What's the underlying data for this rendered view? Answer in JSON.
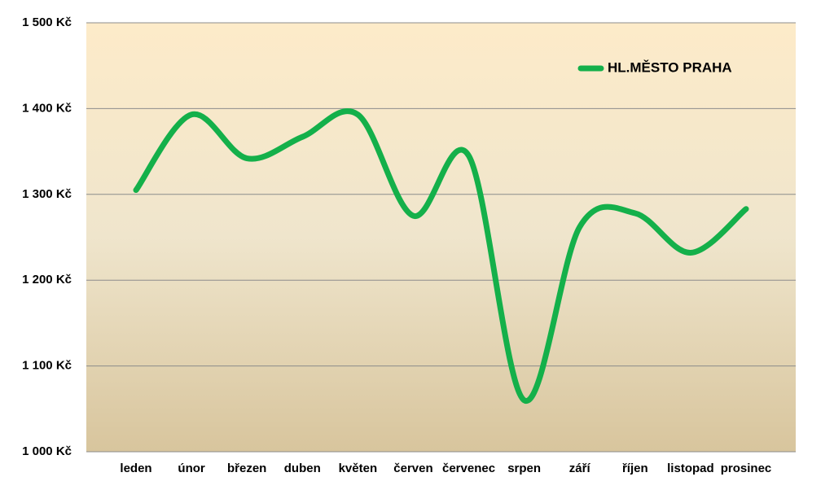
{
  "chart_data": {
    "type": "line",
    "categories": [
      "leden",
      "únor",
      "březen",
      "duben",
      "květen",
      "červen",
      "červenec",
      "srpen",
      "září",
      "říjen",
      "listopad",
      "prosinec"
    ],
    "series": [
      {
        "name": "HL.MĚSTO PRAHA",
        "color": "#14b04a",
        "values": [
          1305,
          1393,
          1342,
          1367,
          1393,
          1275,
          1345,
          1060,
          1262,
          1278,
          1232,
          1283
        ]
      }
    ],
    "ylim": [
      1000,
      1500
    ],
    "yticks": [
      {
        "value": 1000,
        "label": "1 000 Kč"
      },
      {
        "value": 1100,
        "label": "1 100 Kč"
      },
      {
        "value": 1200,
        "label": "1 200 Kč"
      },
      {
        "value": 1300,
        "label": "1 300 Kč"
      },
      {
        "value": 1400,
        "label": "1 400 Kč"
      },
      {
        "value": 1500,
        "label": "1 500 Kč"
      }
    ],
    "grid": true,
    "smooth": true,
    "legend": "top-right"
  }
}
